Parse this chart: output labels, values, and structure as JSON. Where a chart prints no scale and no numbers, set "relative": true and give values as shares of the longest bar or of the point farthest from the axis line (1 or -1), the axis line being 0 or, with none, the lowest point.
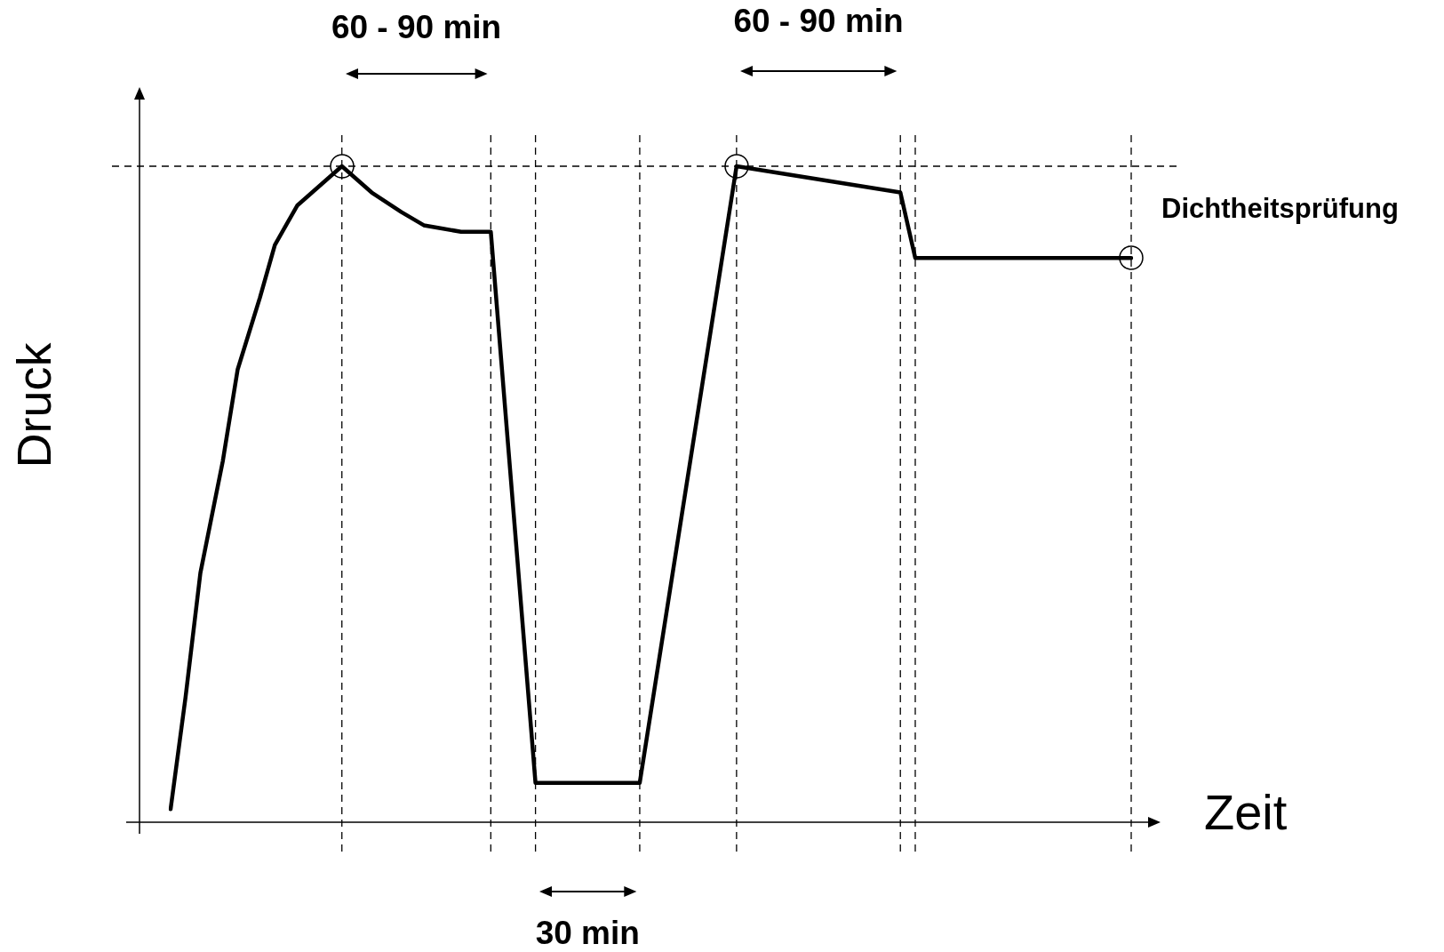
{
  "chart_data": {
    "type": "line",
    "relative": true,
    "xlabel": "Zeit",
    "ylabel": "Druck",
    "tick_labels": false,
    "legend": false,
    "categories": [
      null,
      null,
      null,
      null,
      null,
      null,
      null,
      null,
      null,
      null,
      null,
      null,
      null,
      null,
      null,
      null,
      null,
      null,
      null,
      null,
      null,
      null,
      null,
      null,
      null,
      null,
      null,
      null,
      null,
      null,
      null,
      null,
      null,
      null,
      null,
      null,
      null,
      null,
      null,
      null,
      null,
      null,
      null,
      null,
      null,
      null,
      null,
      null,
      null,
      null,
      null,
      null,
      null,
      null,
      null,
      null,
      null,
      null,
      null,
      null,
      null,
      null,
      null,
      null,
      null,
      null,
      null,
      null,
      null,
      null,
      null,
      null,
      null,
      null,
      null,
      null,
      null,
      null,
      null,
      null,
      null,
      null,
      null,
      null,
      null,
      null,
      null,
      null,
      null,
      null,
      null,
      null,
      null,
      null,
      null,
      null,
      null,
      null,
      null,
      null,
      null,
      null,
      null,
      null,
      null,
      null,
      null,
      null,
      null,
      null,
      null,
      null,
      null,
      null,
      null,
      null,
      null,
      null,
      null,
      null,
      null,
      null,
      null,
      null,
      null,
      null,
      null,
      null,
      null,
      null
    ],
    "series": [
      {
        "color": "#000000",
        "line_style": "solid",
        "values": [
          0.02,
          null,
          0.19,
          null,
          0.38,
          null,
          null,
          0.55,
          null,
          0.69,
          null,
          null,
          0.8,
          null,
          0.88,
          null,
          null,
          0.94,
          null,
          0.96,
          null,
          null,
          null,
          1,
          null,
          null,
          null,
          0.96,
          null,
          null,
          null,
          0.93,
          null,
          null,
          0.91,
          null,
          null,
          null,
          null,
          0.9,
          null,
          null,
          null,
          0.9,
          null,
          null,
          null,
          null,
          null,
          0.06,
          null,
          null,
          null,
          null,
          null,
          null,
          null,
          null,
          null,
          null,
          null,
          null,
          null,
          0.06,
          null,
          null,
          null,
          null,
          null,
          null,
          null,
          null,
          null,
          null,
          null,
          null,
          1,
          null,
          null,
          null,
          null,
          null,
          null,
          null,
          null,
          null,
          null,
          null,
          null,
          null,
          null,
          null,
          null,
          null,
          null,
          null,
          null,
          null,
          0.96,
          null,
          0.86,
          null,
          null,
          null,
          null,
          null,
          null,
          null,
          null,
          null,
          null,
          null,
          null,
          null,
          null,
          null,
          null,
          null,
          null,
          null,
          null,
          null,
          null,
          null,
          null,
          null,
          null,
          null,
          null,
          0.86
        ]
      }
    ],
    "annotations": [
      "60 - 90 min",
      "60 - 90 min",
      "30 min",
      "Dichtheitsprüfung"
    ]
  }
}
